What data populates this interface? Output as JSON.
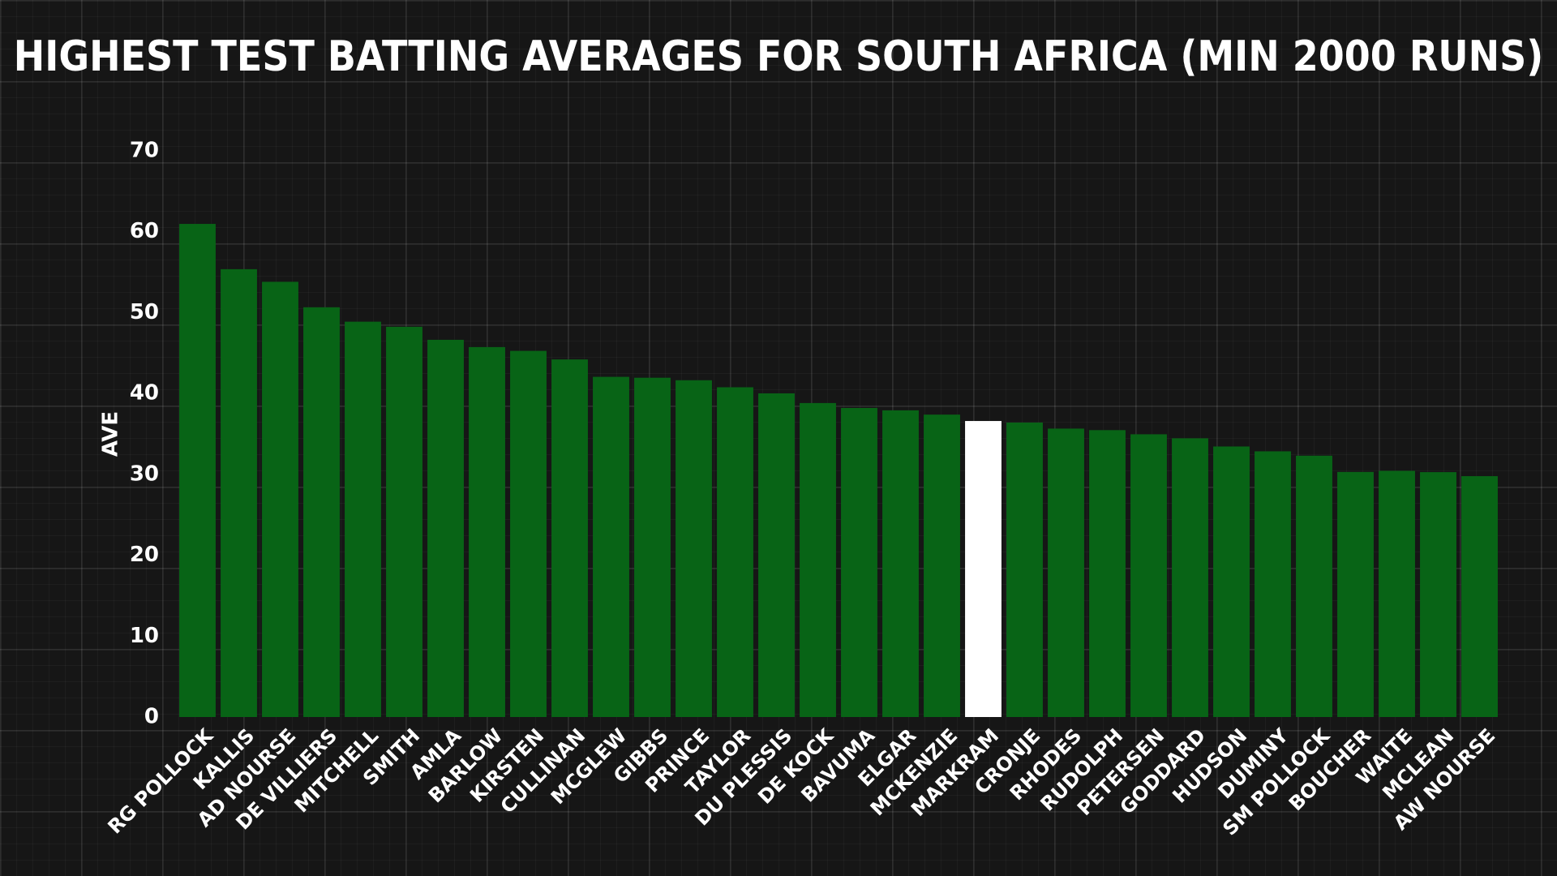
{
  "colors": {
    "background": "#161616",
    "bar": "#086416",
    "highlight": "#ffffff",
    "text": "#ffffff"
  },
  "chart_data": {
    "type": "bar",
    "title": "HIGHEST TEST BATTING AVERAGES FOR SOUTH AFRICA (MIN 2000 RUNS)",
    "xlabel": "",
    "ylabel": "AVE",
    "ylim": [
      0,
      70
    ],
    "yticks": [
      0,
      10,
      20,
      30,
      40,
      50,
      60,
      70
    ],
    "grid": true,
    "highlight": "MARKRAM",
    "categories": [
      "RG POLLOCK",
      "KALLIS",
      "AD NOURSE",
      "DE VILLIERS",
      "MITCHELL",
      "SMITH",
      "AMLA",
      "BARLOW",
      "KIRSTEN",
      "CULLINAN",
      "MCGLEW",
      "GIBBS",
      "PRINCE",
      "TAYLOR",
      "DU PLESSIS",
      "DE KOCK",
      "BAVUMA",
      "ELGAR",
      "MCKENZIE",
      "MARKRAM",
      "CRONJE",
      "RHODES",
      "RUDOLPH",
      "PETERSEN",
      "GODDARD",
      "HUDSON",
      "DUMINY",
      "SM POLLOCK",
      "BOUCHER",
      "WAITE",
      "MCLEAN",
      "AW NOURSE"
    ],
    "values": [
      60.97,
      55.37,
      53.81,
      50.66,
      48.88,
      48.25,
      46.64,
      45.74,
      45.27,
      44.21,
      42.06,
      41.95,
      41.64,
      40.77,
      40.02,
      38.82,
      38.21,
      37.92,
      37.39,
      36.6,
      36.41,
      35.66,
      35.47,
      34.96,
      34.46,
      33.45,
      32.85,
      32.31,
      30.3,
      30.44,
      30.28,
      29.78
    ]
  }
}
